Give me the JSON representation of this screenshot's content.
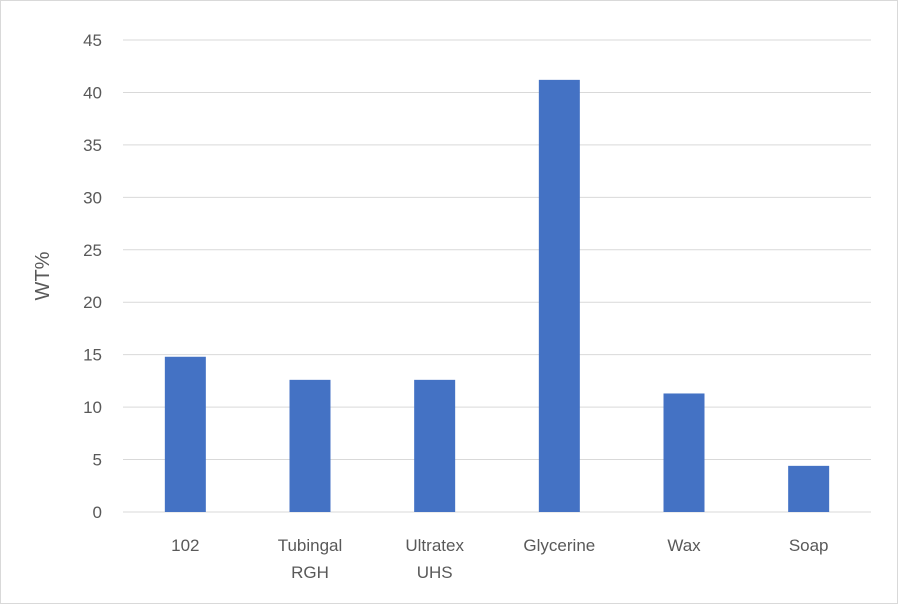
{
  "chart_data": {
    "type": "bar",
    "title": "",
    "xlabel": "",
    "ylabel": "WT%",
    "categories": [
      [
        "102"
      ],
      [
        "Tubingal",
        "RGH"
      ],
      [
        "Ultratex",
        "UHS"
      ],
      [
        "Glycerine"
      ],
      [
        "Wax"
      ],
      [
        "Soap"
      ]
    ],
    "values": [
      14.8,
      12.6,
      12.6,
      41.2,
      11.3,
      4.4
    ],
    "ylim": [
      0,
      45
    ],
    "yticks": [
      0,
      5,
      10,
      15,
      20,
      25,
      30,
      35,
      40,
      45
    ],
    "grid": true,
    "legend": "none",
    "colors": {
      "bar": "#4472C4",
      "grid": "#d9d9d9",
      "text": "#595959"
    }
  }
}
